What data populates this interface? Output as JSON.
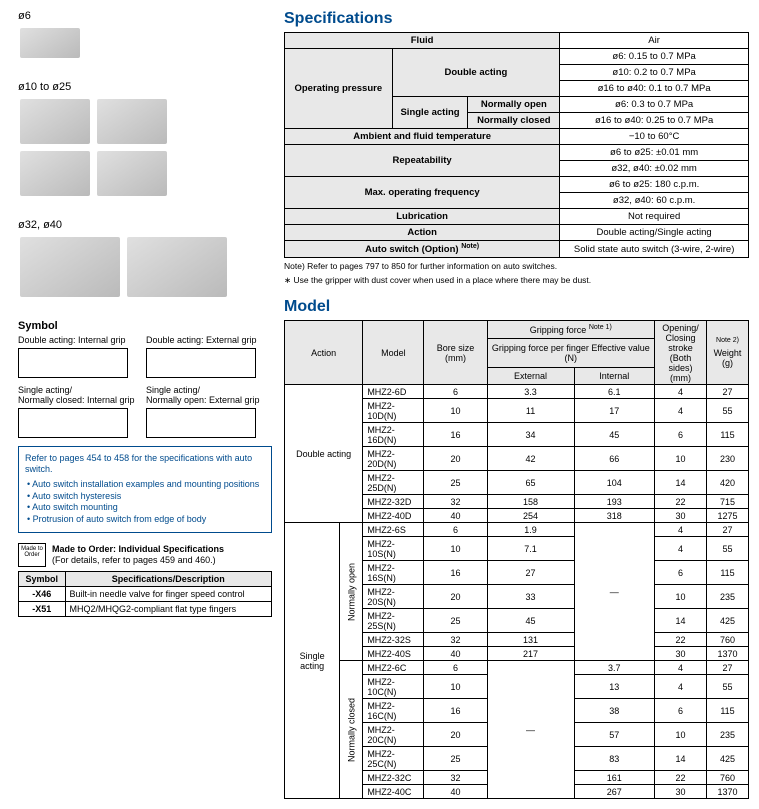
{
  "left": {
    "size1": "ø6",
    "size2": "ø10 to ø25",
    "size3": "ø32, ø40",
    "symbolTitle": "Symbol",
    "sym1": "Double acting: Internal grip",
    "sym2": "Double acting: External grip",
    "sym3": "Single acting/\nNormally closed: Internal grip",
    "sym4": "Single acting/\nNormally open: External grip",
    "noteHeader": "Refer to pages 454 to 458 for the specifications with auto switch.",
    "noteB1": "• Auto switch installation examples and mounting positions",
    "noteB2": "• Auto switch hysteresis",
    "noteB3": "• Auto switch mounting",
    "noteB4": "• Protrusion of auto switch from edge of body",
    "mtoIcon": "Made to Order",
    "mtoBold": "Made to Order: Individual Specifications",
    "mtoSub": "(For details, refer to pages 459 and 460.)",
    "mtoH1": "Symbol",
    "mtoH2": "Specifications/Description",
    "mtoR1a": "-X46",
    "mtoR1b": "Built-in needle valve for finger speed control",
    "mtoR2a": "-X51",
    "mtoR2b": "MHQ2/MHQG2-compliant flat type fingers"
  },
  "spec": {
    "title": "Specifications",
    "fluid": "Fluid",
    "fluidV": "Air",
    "opPress": "Operating pressure",
    "dblAct": "Double acting",
    "dA1": "ø6: 0.15 to 0.7 MPa",
    "dA2": "ø10: 0.2 to 0.7 MPa",
    "dA3": "ø16 to ø40: 0.1 to 0.7 MPa",
    "sglAct": "Single acting",
    "normOpen": "Normally open",
    "normClosed": "Normally closed",
    "sO": "ø6: 0.3 to 0.7 MPa",
    "sM": "ø10: 0.35 to 0.7 MPa",
    "sC": "ø16 to ø40: 0.25 to 0.7 MPa",
    "ambient": "Ambient and fluid temperature",
    "ambientV": "−10 to 60°C",
    "repeat": "Repeatability",
    "rep1": "ø6 to ø25: ±0.01 mm",
    "rep2": "ø32, ø40: ±0.02 mm",
    "maxFreq": "Max. operating frequency",
    "freq1": "ø6 to ø25: 180 c.p.m.",
    "freq2": "ø32, ø40: 60 c.p.m.",
    "lub": "Lubrication",
    "lubV": "Not required",
    "action": "Action",
    "actionV": "Double acting/Single acting",
    "autoSw": "Auto switch (Option)",
    "autoSwNote": "Note)",
    "autoSwV": "Solid state auto switch (3-wire, 2-wire)",
    "fn1": "Note) Refer to pages 797 to 850 for further information on auto switches.",
    "fn2": "∗ Use the gripper with dust cover when used in a place where there may be dust."
  },
  "model": {
    "title": "Model",
    "hAction": "Action",
    "hModel": "Model",
    "hBore": "Bore size (mm)",
    "hGrip": "Gripping force",
    "hGripNote": "Note 1)",
    "hGripSub": "Gripping force per finger Effective value (N)",
    "hExt": "External",
    "hInt": "Internal",
    "hStroke": "Opening/ Closing stroke (Both sides) (mm)",
    "hWeight": "Weight (g)",
    "hWeightNote": "Note 2)",
    "dblActing": "Double acting",
    "sglActing": "Single acting",
    "normOpenV": "Normally open",
    "normClosedV": "Normally closed",
    "dash": "—",
    "rows": {
      "d": [
        {
          "m": "MHZ2-6D",
          "b": "6",
          "e": "3.3",
          "i": "6.1",
          "s": "4",
          "w": "27"
        },
        {
          "m": "MHZ2-10D(N)",
          "b": "10",
          "e": "11",
          "i": "17",
          "s": "4",
          "w": "55"
        },
        {
          "m": "MHZ2-16D(N)",
          "b": "16",
          "e": "34",
          "i": "45",
          "s": "6",
          "w": "115"
        },
        {
          "m": "MHZ2-20D(N)",
          "b": "20",
          "e": "42",
          "i": "66",
          "s": "10",
          "w": "230"
        },
        {
          "m": "MHZ2-25D(N)",
          "b": "25",
          "e": "65",
          "i": "104",
          "s": "14",
          "w": "420"
        },
        {
          "m": "MHZ2-32D",
          "b": "32",
          "e": "158",
          "i": "193",
          "s": "22",
          "w": "715"
        },
        {
          "m": "MHZ2-40D",
          "b": "40",
          "e": "254",
          "i": "318",
          "s": "30",
          "w": "1275"
        }
      ],
      "so": [
        {
          "m": "MHZ2-6S",
          "b": "6",
          "e": "1.9",
          "s": "4",
          "w": "27"
        },
        {
          "m": "MHZ2-10S(N)",
          "b": "10",
          "e": "7.1",
          "s": "4",
          "w": "55"
        },
        {
          "m": "MHZ2-16S(N)",
          "b": "16",
          "e": "27",
          "s": "6",
          "w": "115"
        },
        {
          "m": "MHZ2-20S(N)",
          "b": "20",
          "e": "33",
          "s": "10",
          "w": "235"
        },
        {
          "m": "MHZ2-25S(N)",
          "b": "25",
          "e": "45",
          "s": "14",
          "w": "425"
        },
        {
          "m": "MHZ2-32S",
          "b": "32",
          "e": "131",
          "s": "22",
          "w": "760"
        },
        {
          "m": "MHZ2-40S",
          "b": "40",
          "e": "217",
          "s": "30",
          "w": "1370"
        }
      ],
      "sc": [
        {
          "m": "MHZ2-6C",
          "b": "6",
          "i": "3.7",
          "s": "4",
          "w": "27"
        },
        {
          "m": "MHZ2-10C(N)",
          "b": "10",
          "i": "13",
          "s": "4",
          "w": "55"
        },
        {
          "m": "MHZ2-16C(N)",
          "b": "16",
          "i": "38",
          "s": "6",
          "w": "115"
        },
        {
          "m": "MHZ2-20C(N)",
          "b": "20",
          "i": "57",
          "s": "10",
          "w": "235"
        },
        {
          "m": "MHZ2-25C(N)",
          "b": "25",
          "i": "83",
          "s": "14",
          "w": "425"
        },
        {
          "m": "MHZ2-32C",
          "b": "32",
          "i": "161",
          "s": "22",
          "w": "760"
        },
        {
          "m": "MHZ2-40C",
          "b": "40",
          "i": "267",
          "s": "30",
          "w": "1370"
        }
      ]
    }
  }
}
